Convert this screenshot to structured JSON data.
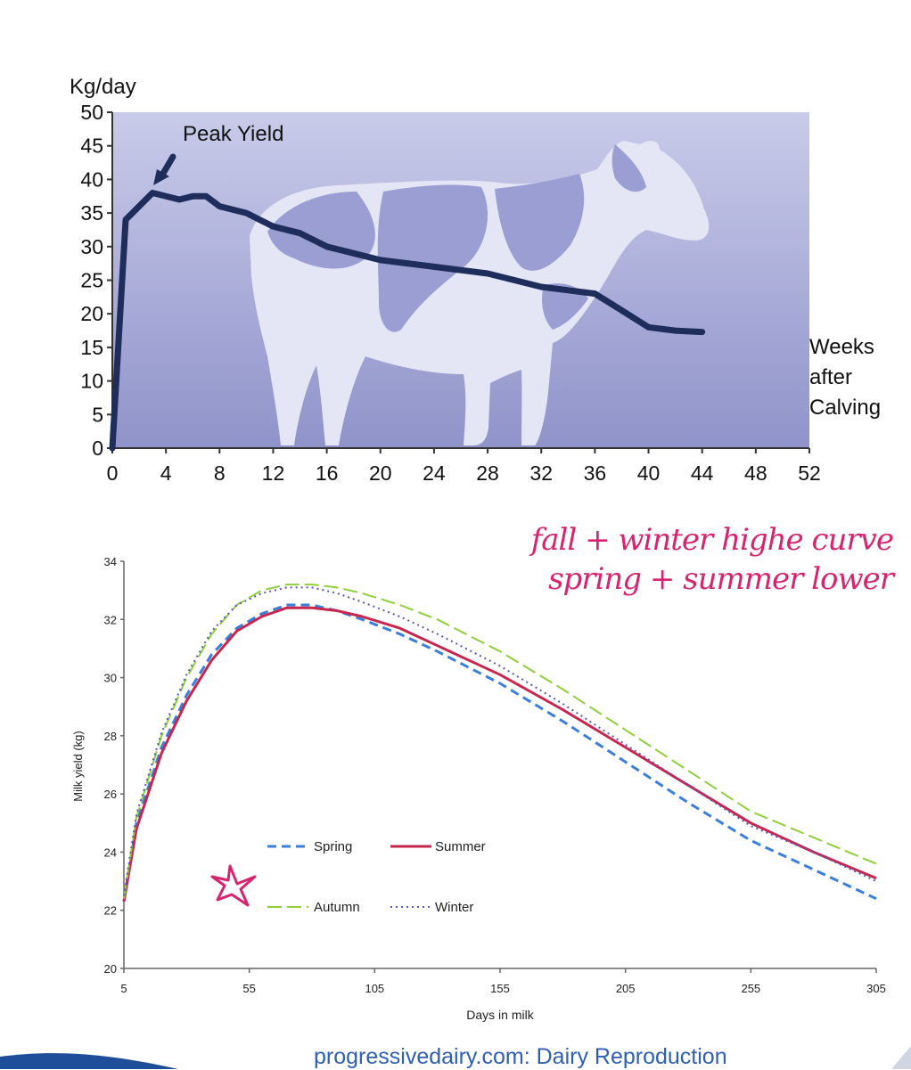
{
  "chart_data": [
    {
      "type": "line",
      "title": "",
      "ylabel": "Kg/day",
      "xlabel": "Weeks after Calving",
      "xlabel_lines": [
        "Weeks",
        "after",
        "Calving"
      ],
      "xlim": [
        0,
        52
      ],
      "ylim": [
        0,
        50
      ],
      "xticks": [
        0,
        4,
        8,
        12,
        16,
        20,
        24,
        28,
        32,
        36,
        40,
        44,
        48,
        52
      ],
      "yticks": [
        0,
        5,
        10,
        15,
        20,
        25,
        30,
        35,
        40,
        45,
        50
      ],
      "annotation": "Peak Yield",
      "background_image": "cow-silhouette",
      "line_color": "#1f2d5c",
      "series": [
        {
          "x": [
            0,
            1,
            3,
            5,
            6,
            7,
            8,
            10,
            12,
            14,
            16,
            18,
            20,
            22,
            24,
            26,
            28,
            30,
            32,
            34,
            36,
            38,
            40,
            42,
            44
          ],
          "values": [
            0,
            34,
            38,
            37,
            37.5,
            37.5,
            36,
            35,
            33,
            32,
            30,
            29,
            28,
            27.5,
            27,
            26.5,
            26,
            25,
            24,
            23.5,
            23,
            20.5,
            18,
            17.5,
            17.3
          ]
        }
      ]
    },
    {
      "type": "line",
      "title": "",
      "xlabel": "Days in milk",
      "ylabel": "Milk yield (kg)",
      "xlim": [
        5,
        305
      ],
      "ylim": [
        20,
        34
      ],
      "xticks": [
        5,
        55,
        105,
        155,
        205,
        255,
        305
      ],
      "yticks": [
        20,
        22,
        24,
        26,
        28,
        30,
        32,
        34
      ],
      "legend": "inside-lower-left",
      "series": [
        {
          "name": "Spring",
          "color": "#3b7fd9",
          "dash": "dashed",
          "x": [
            5,
            10,
            20,
            30,
            40,
            50,
            60,
            70,
            80,
            90,
            100,
            115,
            130,
            155,
            180,
            205,
            230,
            255,
            280,
            305
          ],
          "values": [
            22.3,
            25.0,
            27.6,
            29.4,
            30.8,
            31.7,
            32.2,
            32.5,
            32.5,
            32.3,
            32.0,
            31.5,
            30.9,
            29.8,
            28.5,
            27.1,
            25.7,
            24.4,
            23.4,
            22.4
          ]
        },
        {
          "name": "Summer",
          "color": "#c8264e",
          "dash": "solid",
          "x": [
            5,
            10,
            20,
            30,
            40,
            50,
            60,
            70,
            80,
            90,
            100,
            115,
            130,
            155,
            180,
            205,
            230,
            255,
            280,
            305
          ],
          "values": [
            22.3,
            24.8,
            27.4,
            29.2,
            30.6,
            31.6,
            32.1,
            32.4,
            32.4,
            32.3,
            32.1,
            31.7,
            31.1,
            30.1,
            28.9,
            27.6,
            26.3,
            25.0,
            24.0,
            23.1
          ]
        },
        {
          "name": "Autumn",
          "color": "#8fcf3a",
          "dash": "longdash",
          "x": [
            5,
            10,
            20,
            30,
            40,
            50,
            60,
            70,
            80,
            90,
            100,
            115,
            130,
            155,
            180,
            205,
            230,
            255,
            280,
            305
          ],
          "values": [
            22.4,
            25.2,
            28.0,
            30.0,
            31.5,
            32.5,
            33.0,
            33.2,
            33.2,
            33.1,
            32.9,
            32.5,
            32.0,
            30.9,
            29.6,
            28.2,
            26.8,
            25.4,
            24.5,
            23.6
          ]
        },
        {
          "name": "Winter",
          "color": "#5858b0",
          "dash": "dotted",
          "x": [
            5,
            10,
            20,
            30,
            40,
            50,
            60,
            70,
            80,
            90,
            100,
            115,
            130,
            155,
            180,
            205,
            230,
            255,
            280,
            305
          ],
          "values": [
            22.5,
            25.3,
            28.1,
            30.1,
            31.6,
            32.5,
            32.9,
            33.1,
            33.1,
            32.9,
            32.6,
            32.1,
            31.5,
            30.4,
            29.1,
            27.7,
            26.3,
            24.9,
            24.0,
            23.0
          ]
        }
      ]
    }
  ],
  "handwritten_note": {
    "line1": "fall + winter highe curve",
    "line2": "spring + summer lower",
    "color": "#d6246e"
  },
  "source": "progressivedairy.com: Dairy Reproduction"
}
